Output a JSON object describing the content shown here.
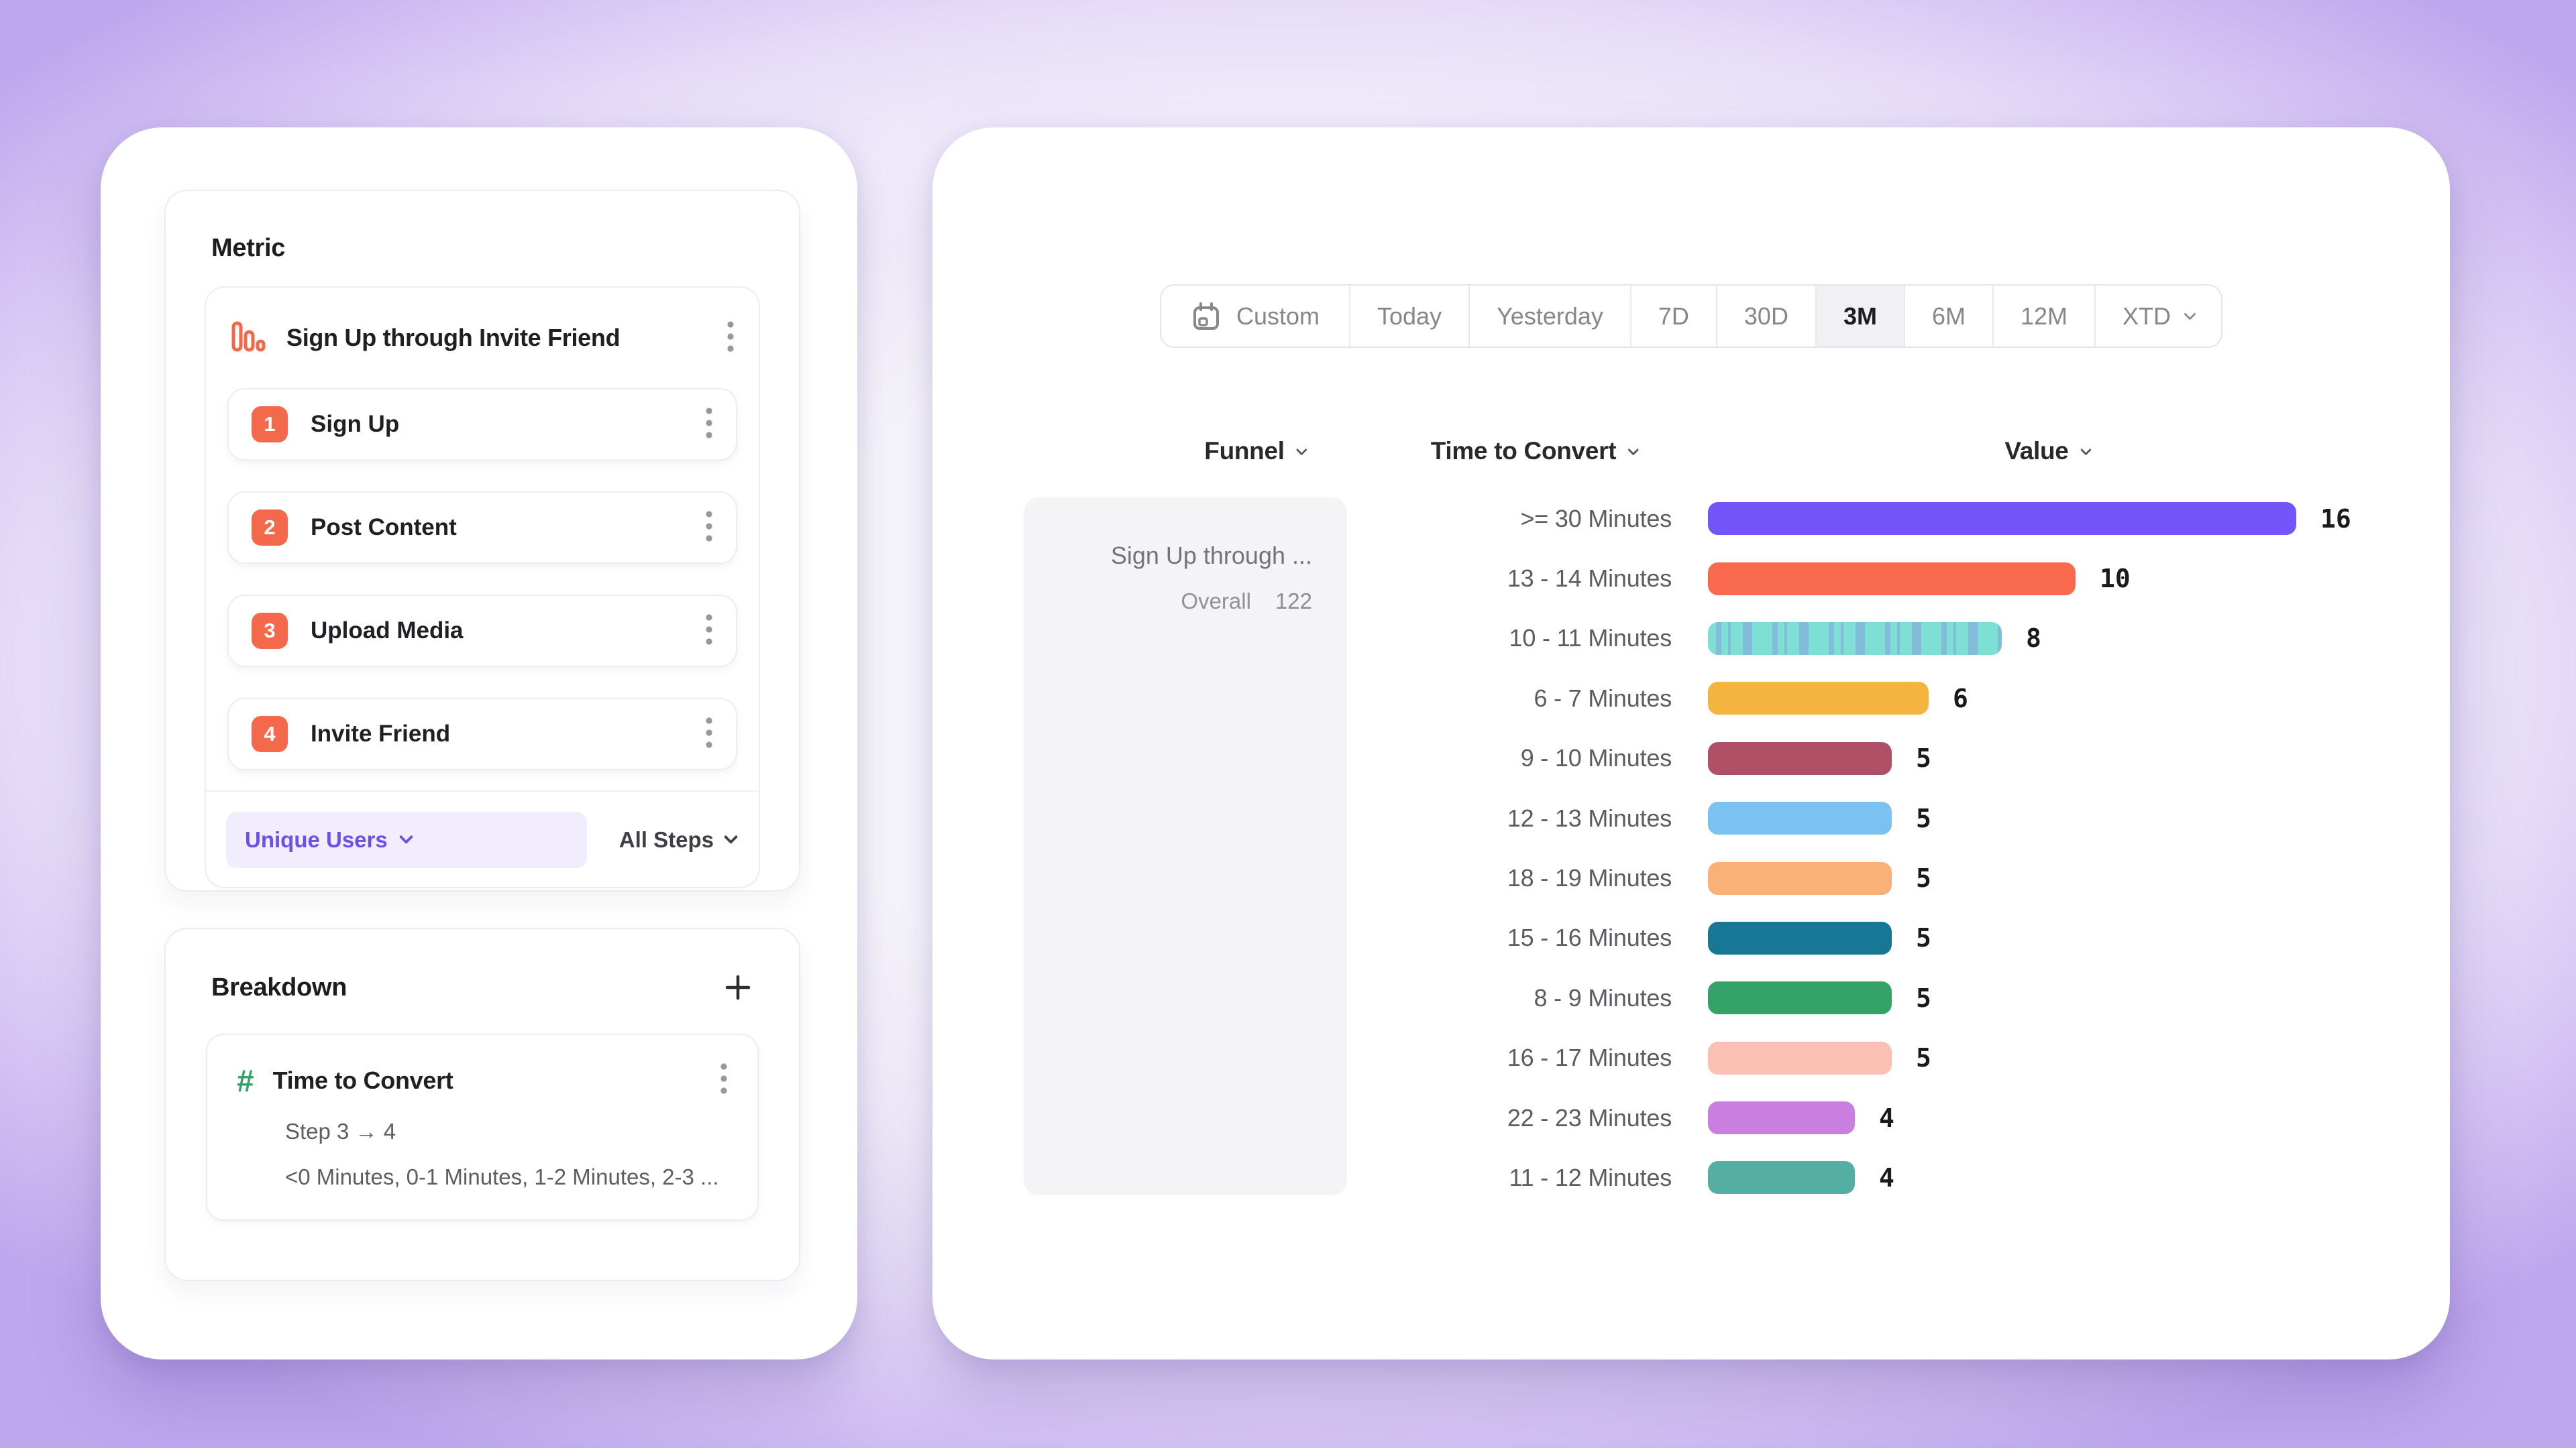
{
  "metric_panel": {
    "title": "Metric",
    "funnel": {
      "name": "Sign Up through Invite Friend",
      "steps": [
        {
          "number": "1",
          "label": "Sign Up"
        },
        {
          "number": "2",
          "label": "Post Content"
        },
        {
          "number": "3",
          "label": "Upload Media"
        },
        {
          "number": "4",
          "label": "Invite Friend"
        }
      ],
      "measure_label": "Unique Users",
      "steps_filter_label": "All Steps"
    }
  },
  "breakdown_panel": {
    "title": "Breakdown",
    "item": {
      "name": "Time to Convert",
      "step_range": "Step 3 → 4",
      "buckets_preview": "<0 Minutes, 0-1 Minutes, 1-2 Minutes, 2-3 ..."
    }
  },
  "time_range": {
    "options": [
      "Custom",
      "Today",
      "Yesterday",
      "7D",
      "30D",
      "3M",
      "6M",
      "12M",
      "XTD"
    ],
    "selected": "3M",
    "calendar_icon_option": "Custom",
    "chevron_option": "XTD"
  },
  "report_header": {
    "funnel_label": "Funnel",
    "time_to_convert_label": "Time to Convert",
    "value_label": "Value"
  },
  "funnel_summary": {
    "name": "Sign Up through ...",
    "overall_label": "Overall",
    "overall_value": "122"
  },
  "chart_data": {
    "type": "bar",
    "orientation": "horizontal",
    "title": "",
    "xlabel": "",
    "ylabel": "",
    "categories": [
      ">= 30 Minutes",
      "13 - 14 Minutes",
      "10 - 11 Minutes",
      "6 - 7 Minutes",
      "9 - 10 Minutes",
      "12 - 13 Minutes",
      "18 - 19 Minutes",
      "15 - 16 Minutes",
      "8 - 9 Minutes",
      "16 - 17 Minutes",
      "22 - 23 Minutes",
      "11 - 12 Minutes"
    ],
    "values": [
      16,
      10,
      8,
      6,
      5,
      5,
      5,
      5,
      5,
      5,
      4,
      4
    ],
    "bar_colors": [
      "#7355FA",
      "#F8694E",
      "#7EDFD4",
      "#F5B43E",
      "#AF5067",
      "#7BC2F2",
      "#FBB078",
      "#187795",
      "#35A267",
      "#FBC0B4",
      "#C97FE0",
      "#55AEA4"
    ],
    "patterned_bar_category": "10 - 11 Minutes",
    "value_labels_shown": true,
    "grid": false,
    "xlim": [
      0,
      16.5
    ]
  },
  "colors": {
    "accent_purple": "#6950E8",
    "badge_orange": "#F4694C",
    "hash_green": "#2EA36B",
    "funnel_icon_orange": "#F3684A",
    "selected_range_bg": "#F1F1F4",
    "funnel_chip_bg": "#F4F4F6"
  }
}
